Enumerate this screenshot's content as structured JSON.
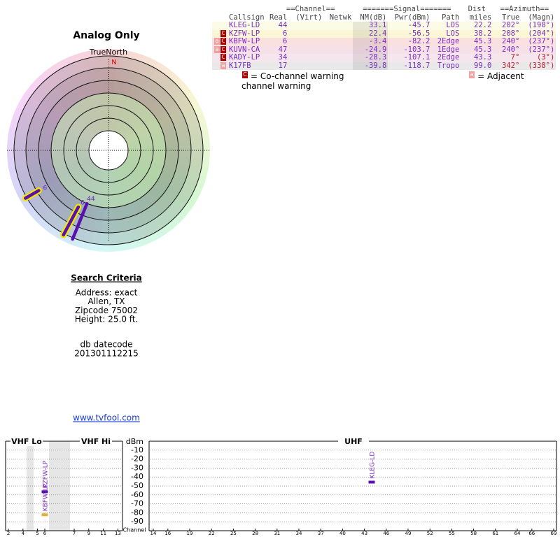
{
  "polar": {
    "title": "Analog Only",
    "north_label": "TrueNorth",
    "north_mark": "N"
  },
  "table": {
    "group_headers": [
      "==Channel==",
      "=======Signal=======",
      "Dist",
      "==Azimuth=="
    ],
    "columns": [
      "Callsign",
      "Real",
      "(Virt)",
      "Netwk",
      "NM(dB)",
      "Pwr(dBm)",
      "Path",
      "miles",
      "True",
      "(Magn)"
    ],
    "rows": [
      [
        "KLEG-LD",
        "44",
        null,
        null,
        "33.1",
        "-45.7",
        "LOS",
        "22.2",
        "202°",
        "(198°)"
      ],
      [
        "KZFW-LP",
        "6",
        null,
        null,
        "22.4",
        "-56.5",
        "LOS",
        "38.2",
        "208°",
        "(204°)"
      ],
      [
        "KBFW-LP",
        "6",
        null,
        null,
        "-3.4",
        "-82.2",
        "2Edge",
        "45.3",
        "240°",
        "(237°)"
      ],
      [
        "KUVN-CA",
        "47",
        null,
        null,
        "-24.9",
        "-103.7",
        "1Edge",
        "45.3",
        "240°",
        "(237°)"
      ],
      [
        "KADY-LP",
        "34",
        null,
        null,
        "-28.3",
        "-107.1",
        "2Edge",
        "43.3",
        "7°",
        "(3°)"
      ],
      [
        "K17FB",
        "17",
        null,
        null,
        "-39.8",
        "-118.7",
        "Tropo",
        "99.0",
        "342°",
        "(338°)"
      ]
    ],
    "warnings": [
      [],
      [
        "C"
      ],
      [
        "a",
        "C"
      ],
      [
        "a",
        "C"
      ],
      [
        "C"
      ],
      [
        "a"
      ]
    ]
  },
  "legend": {
    "co_channel": {
      "icon": "C",
      "text": "= Co-channel warning"
    },
    "adjacent": {
      "icon": "a",
      "text": "= Adjacent channel warning"
    }
  },
  "search": {
    "title": "Search Criteria",
    "lines": [
      "Address: exact",
      "Allen, TX",
      "Zipcode 75002",
      "Height: 25.0 ft."
    ],
    "datecode_label": "db datecode",
    "datecode": "201301112215",
    "link": "www.tvfool.com"
  },
  "spectrum": {
    "bands": [
      "VHF Lo",
      "VHF Hi",
      "UHF"
    ],
    "y_label": "dBm",
    "x_label": "Channel",
    "ylim": [
      0,
      -100
    ],
    "yticks": [
      -10,
      -20,
      -30,
      -40,
      -50,
      -60,
      -70,
      -80,
      -90
    ],
    "xticks": [
      2,
      4,
      5,
      6,
      7,
      9,
      11,
      13,
      14,
      16,
      19,
      22,
      25,
      28,
      31,
      34,
      37,
      40,
      43,
      46,
      49,
      52,
      55,
      58,
      61,
      64,
      66,
      69
    ]
  }
}
